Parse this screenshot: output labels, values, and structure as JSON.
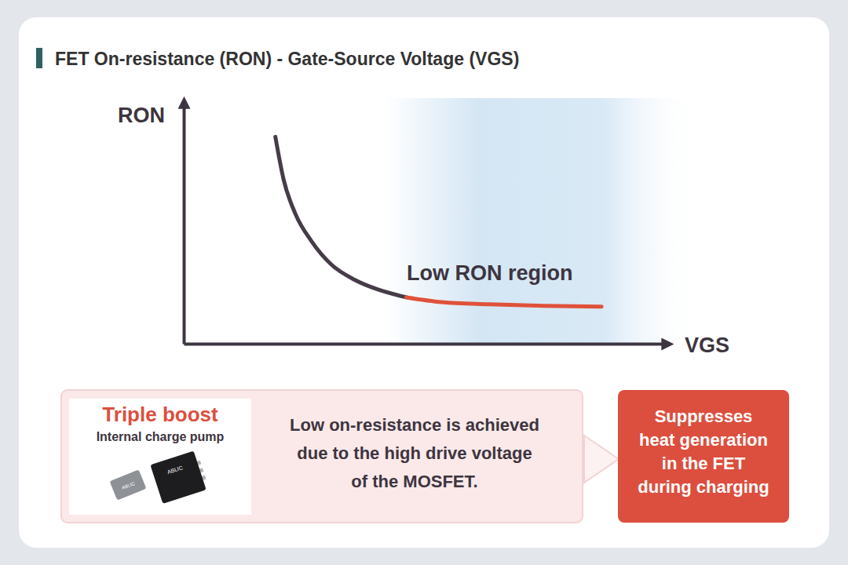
{
  "chart_data": {
    "type": "line",
    "title": "FET On-resistance (RON) - Gate-Source Voltage (VGS)",
    "x_label": "VGS",
    "y_label": "RON",
    "x": [
      19.1,
      20.8,
      23.3,
      26.6,
      30.7,
      35.6,
      40.6,
      46.4,
      53.8,
      63.7,
      75.2,
      87.1
    ],
    "series": [
      {
        "color": "#463c48",
        "values": [
          87.0,
          69.2,
          54.5,
          43.2,
          33.4,
          26.9,
          22.7,
          19.5,
          null,
          null,
          null,
          null
        ]
      },
      {
        "name": "Low RON region",
        "color": "#e0513a",
        "values": [
          null,
          null,
          null,
          null,
          null,
          null,
          null,
          19.5,
          17.5,
          16.6,
          15.9,
          15.6
        ]
      }
    ],
    "xlim": [
      0,
      100
    ],
    "ylim": [
      0,
      100
    ],
    "xticks": [],
    "yticks": [],
    "tick_labels": false,
    "grid": false
  },
  "callout": {
    "title": "Triple boost",
    "subtitle": "Internal charge pump",
    "chip_label": "ABLIC",
    "text": [
      "Low on-resistance is achieved",
      "due to the high drive voltage",
      "of the MOSFET."
    ]
  },
  "result": {
    "text": [
      "Suppresses",
      "heat generation",
      "in the FET",
      "during charging"
    ]
  }
}
